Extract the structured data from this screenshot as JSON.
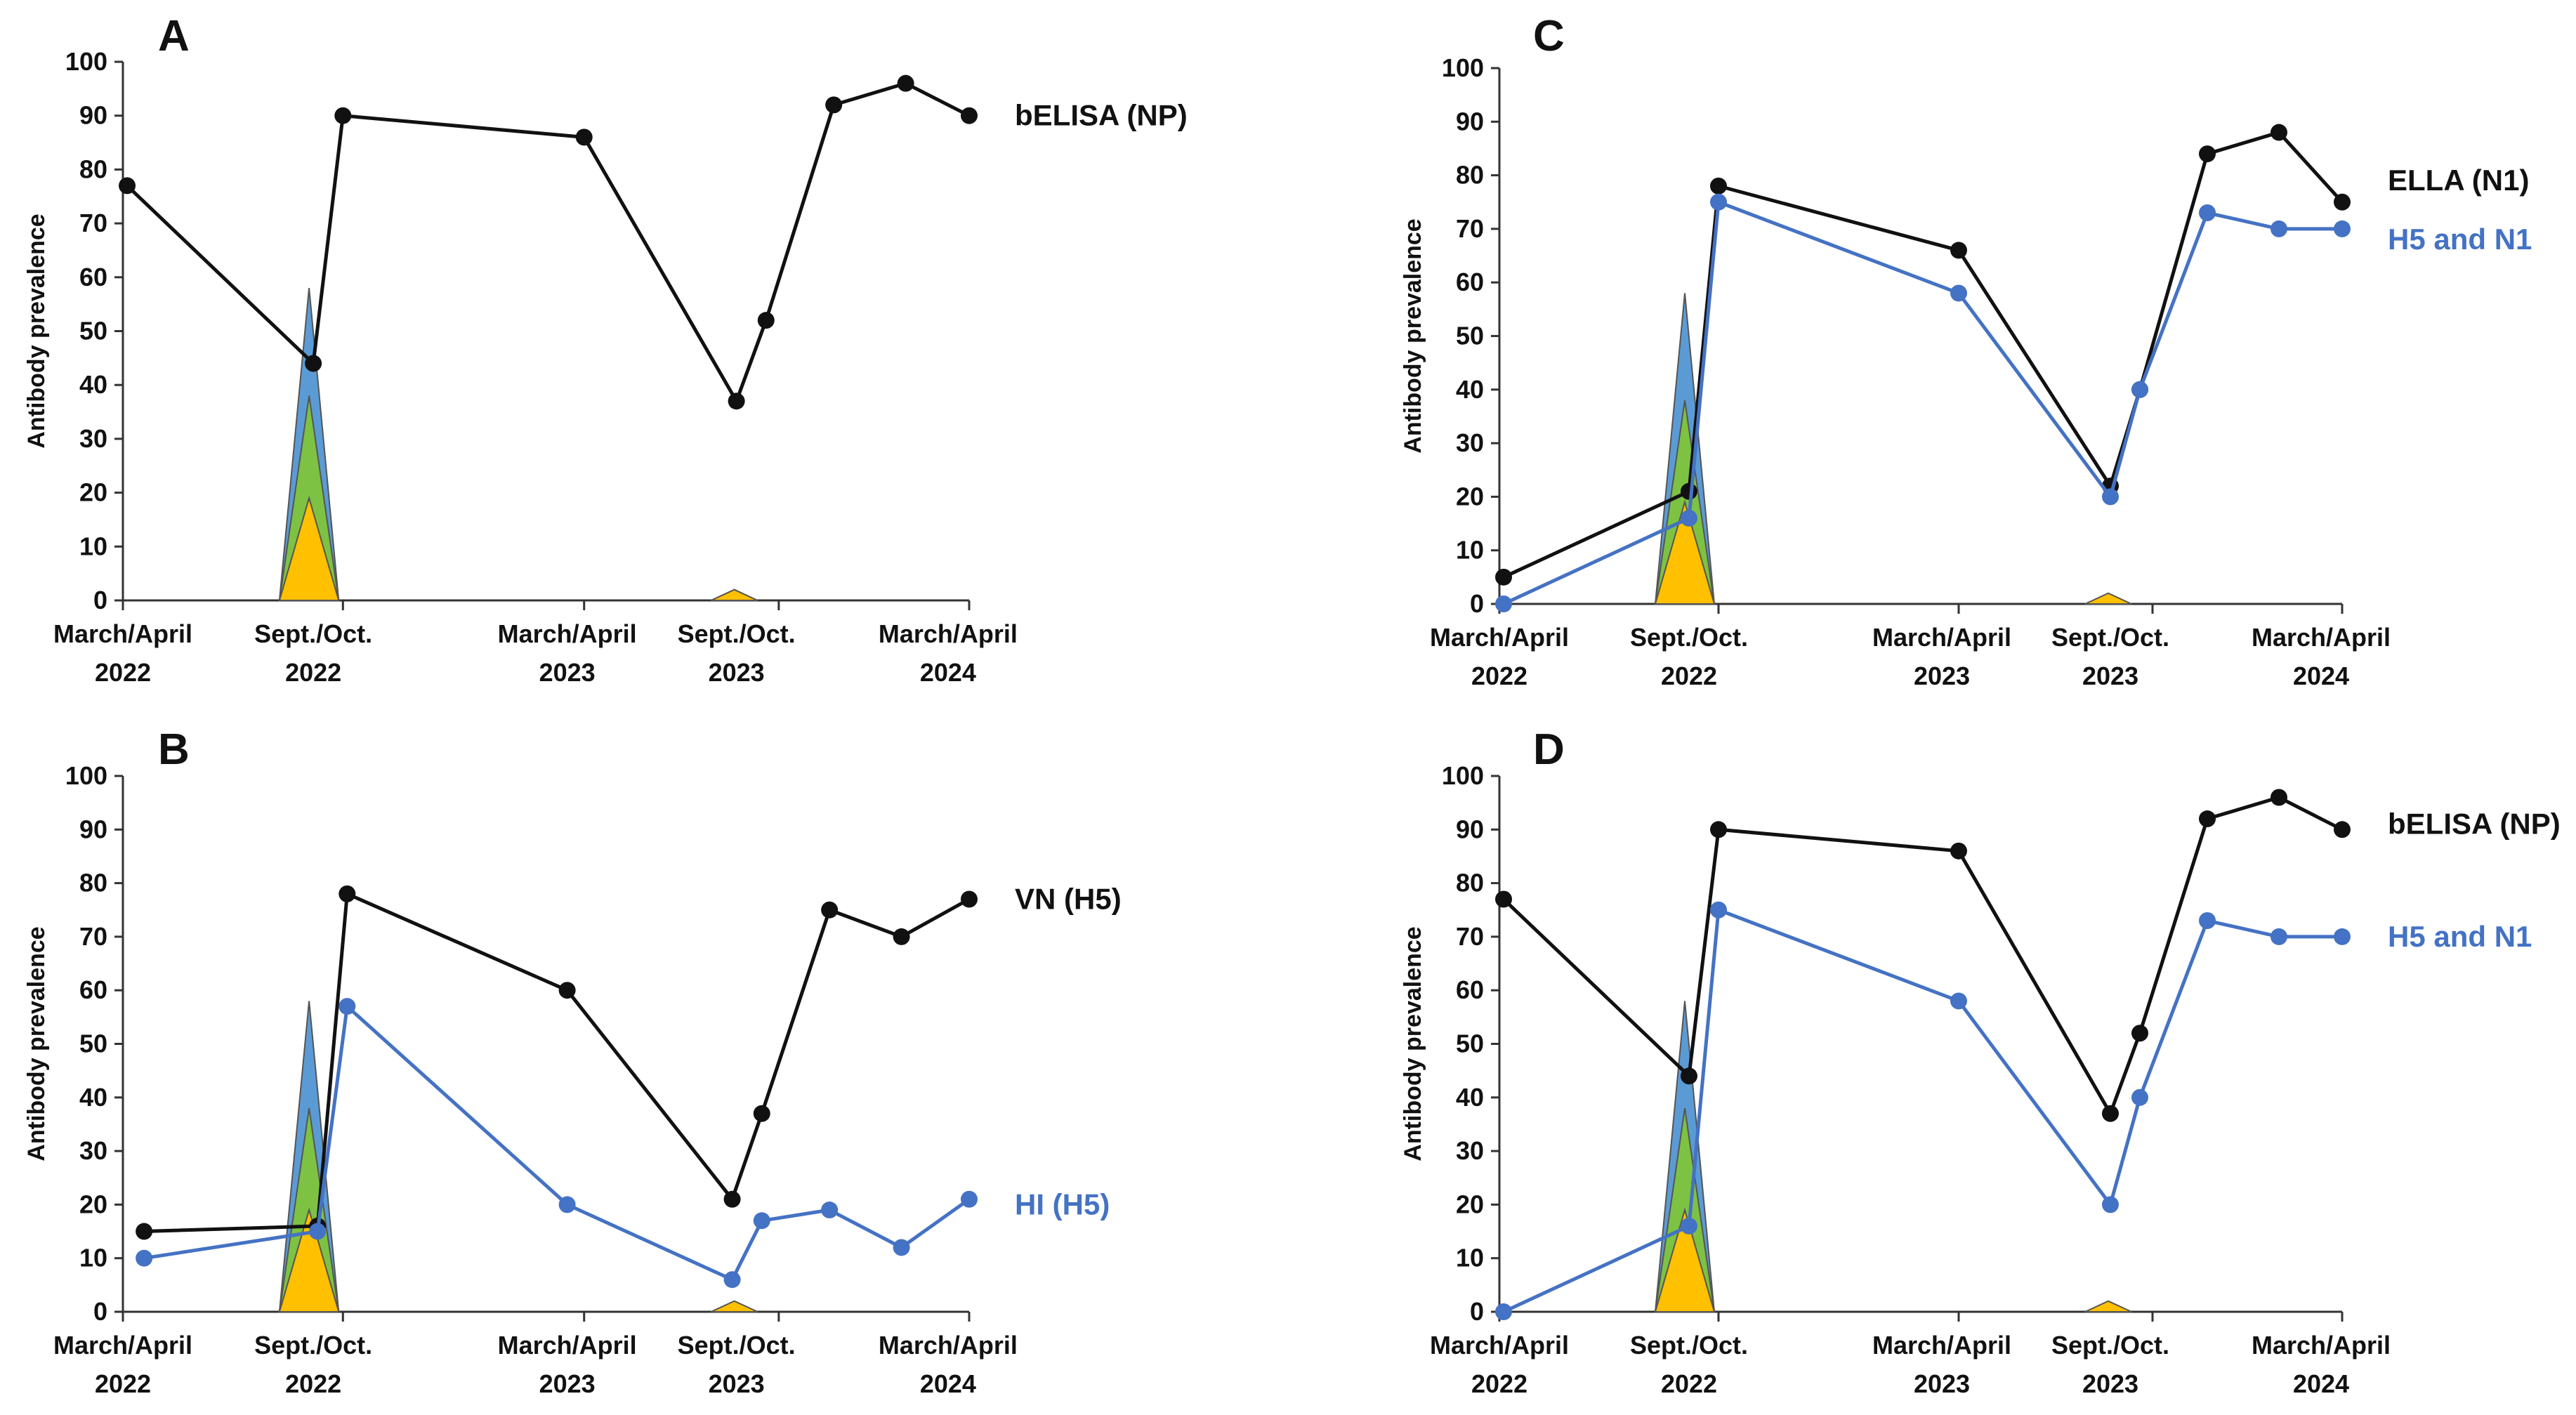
{
  "figure": {
    "panels": [
      "A",
      "B",
      "C",
      "D"
    ]
  },
  "colors": {
    "black_series": "#111111",
    "blue_series": "#4472C4",
    "peak_blue": "#5B9BD5",
    "peak_green": "#7DC242",
    "peak_yellow": "#FFC000",
    "axis": "#333333"
  },
  "chart_data": [
    {
      "panel": "A",
      "type": "line",
      "ylabel": "Antibody prevalence",
      "ylim": [
        0,
        100
      ],
      "yticks": [
        0,
        10,
        20,
        30,
        40,
        50,
        60,
        70,
        80,
        90,
        100
      ],
      "xlim": [
        0,
        20
      ],
      "xticks": [
        {
          "x": 0,
          "line1": "March/April",
          "line2": "2022"
        },
        {
          "x": 4.5,
          "line1": "Sept./Oct.",
          "line2": "2022"
        },
        {
          "x": 10.5,
          "line1": "March/April",
          "line2": "2023"
        },
        {
          "x": 14.5,
          "line1": "Sept./Oct.",
          "line2": "2023"
        },
        {
          "x": 19.5,
          "line1": "March/April",
          "line2": "2024"
        }
      ],
      "outbreaks": [
        {
          "x0": 3.7,
          "x1": 5.1,
          "peak_x": 4.4,
          "layers": [
            58,
            38,
            19
          ]
        },
        {
          "x0": 13.9,
          "x1": 15.0,
          "peak_x": 14.45,
          "layers": [
            2
          ]
        }
      ],
      "series": [
        {
          "name": "bELISA (NP)",
          "color_key": "black_series",
          "x": [
            0.1,
            4.5,
            5.2,
            10.9,
            14.5,
            15.2,
            16.8,
            18.5,
            20.0
          ],
          "values": [
            77,
            44,
            90,
            86,
            37,
            52,
            92,
            96,
            90
          ]
        }
      ],
      "labels": [
        {
          "text": "bELISA (NP)",
          "color_key": "black_series",
          "y": 90
        }
      ]
    },
    {
      "panel": "B",
      "type": "line",
      "ylabel": "Antibody prevalence",
      "ylim": [
        0,
        100
      ],
      "yticks": [
        0,
        10,
        20,
        30,
        40,
        50,
        60,
        70,
        80,
        90,
        100
      ],
      "xlim": [
        0,
        20
      ],
      "xticks": [
        {
          "x": 0,
          "line1": "March/April",
          "line2": "2022"
        },
        {
          "x": 4.5,
          "line1": "Sept./Oct.",
          "line2": "2022"
        },
        {
          "x": 10.5,
          "line1": "March/April",
          "line2": "2023"
        },
        {
          "x": 14.5,
          "line1": "Sept./Oct.",
          "line2": "2023"
        },
        {
          "x": 19.5,
          "line1": "March/April",
          "line2": "2024"
        }
      ],
      "outbreaks": [
        {
          "x0": 3.7,
          "x1": 5.1,
          "peak_x": 4.4,
          "layers": [
            58,
            38,
            19
          ]
        },
        {
          "x0": 13.9,
          "x1": 15.0,
          "peak_x": 14.45,
          "layers": [
            2
          ]
        }
      ],
      "series": [
        {
          "name": "VN (H5)",
          "color_key": "black_series",
          "x": [
            0.5,
            4.6,
            5.3,
            10.5,
            14.4,
            15.1,
            16.7,
            18.4,
            20.0
          ],
          "values": [
            15,
            16,
            78,
            60,
            21,
            37,
            75,
            70,
            77
          ]
        },
        {
          "name": "HI (H5)",
          "color_key": "blue_series",
          "x": [
            0.5,
            4.6,
            5.3,
            10.5,
            14.4,
            15.1,
            16.7,
            18.4,
            20.0
          ],
          "values": [
            10,
            15,
            57,
            20,
            6,
            17,
            19,
            12,
            21
          ]
        }
      ],
      "labels": [
        {
          "text": "VN (H5)",
          "color_key": "black_series",
          "y": 77
        },
        {
          "text": "HI (H5)",
          "color_key": "blue_series",
          "y": 20
        }
      ]
    },
    {
      "panel": "C",
      "type": "line",
      "ylabel": "Antibody prevalence",
      "ylim": [
        0,
        100
      ],
      "yticks": [
        0,
        10,
        20,
        30,
        40,
        50,
        60,
        70,
        80,
        90,
        100
      ],
      "xlim": [
        0,
        20
      ],
      "xticks": [
        {
          "x": 0,
          "line1": "March/April",
          "line2": "2022"
        },
        {
          "x": 4.5,
          "line1": "Sept./Oct.",
          "line2": "2022"
        },
        {
          "x": 10.5,
          "line1": "March/April",
          "line2": "2023"
        },
        {
          "x": 14.5,
          "line1": "Sept./Oct.",
          "line2": "2023"
        },
        {
          "x": 19.5,
          "line1": "March/April",
          "line2": "2024"
        }
      ],
      "outbreaks": [
        {
          "x0": 3.7,
          "x1": 5.1,
          "peak_x": 4.4,
          "layers": [
            58,
            38,
            19
          ]
        },
        {
          "x0": 13.9,
          "x1": 15.0,
          "peak_x": 14.45,
          "layers": [
            2
          ]
        }
      ],
      "series": [
        {
          "name": "ELLA (N1)",
          "color_key": "black_series",
          "x": [
            0.1,
            4.5,
            5.2,
            10.9,
            14.5,
            15.2,
            16.8,
            18.5,
            20.0
          ],
          "values": [
            5,
            21,
            78,
            66,
            22,
            40,
            84,
            88,
            75
          ]
        },
        {
          "name": "H5 and N1",
          "color_key": "blue_series",
          "x": [
            0.1,
            4.5,
            5.2,
            10.9,
            14.5,
            15.2,
            16.8,
            18.5,
            20.0
          ],
          "values": [
            0,
            16,
            75,
            58,
            20,
            40,
            73,
            70,
            70
          ]
        }
      ],
      "labels": [
        {
          "text": "ELLA (N1)",
          "color_key": "black_series",
          "y": 79
        },
        {
          "text": "H5 and N1",
          "color_key": "blue_series",
          "y": 68
        }
      ]
    },
    {
      "panel": "D",
      "type": "line",
      "ylabel": "Antibody prevalence",
      "ylim": [
        0,
        100
      ],
      "yticks": [
        0,
        10,
        20,
        30,
        40,
        50,
        60,
        70,
        80,
        90,
        100
      ],
      "xlim": [
        0,
        20
      ],
      "xticks": [
        {
          "x": 0,
          "line1": "March/April",
          "line2": "2022"
        },
        {
          "x": 4.5,
          "line1": "Sept./Oct.",
          "line2": "2022"
        },
        {
          "x": 10.5,
          "line1": "March/April",
          "line2": "2023"
        },
        {
          "x": 14.5,
          "line1": "Sept./Oct.",
          "line2": "2023"
        },
        {
          "x": 19.5,
          "line1": "March/April",
          "line2": "2024"
        }
      ],
      "outbreaks": [
        {
          "x0": 3.7,
          "x1": 5.1,
          "peak_x": 4.4,
          "layers": [
            58,
            38,
            19
          ]
        },
        {
          "x0": 13.9,
          "x1": 15.0,
          "peak_x": 14.45,
          "layers": [
            2
          ]
        }
      ],
      "series": [
        {
          "name": "bELISA (NP)",
          "color_key": "black_series",
          "x": [
            0.1,
            4.5,
            5.2,
            10.9,
            14.5,
            15.2,
            16.8,
            18.5,
            20.0
          ],
          "values": [
            77,
            44,
            90,
            86,
            37,
            52,
            92,
            96,
            90
          ]
        },
        {
          "name": "H5 and N1",
          "color_key": "blue_series",
          "x": [
            0.1,
            4.5,
            5.2,
            10.9,
            14.5,
            15.2,
            16.8,
            18.5,
            20.0
          ],
          "values": [
            0,
            16,
            75,
            58,
            20,
            40,
            73,
            70,
            70
          ]
        }
      ],
      "labels": [
        {
          "text": "bELISA (NP)",
          "color_key": "black_series",
          "y": 91
        },
        {
          "text": "H5 and N1",
          "color_key": "blue_series",
          "y": 70
        }
      ]
    }
  ]
}
